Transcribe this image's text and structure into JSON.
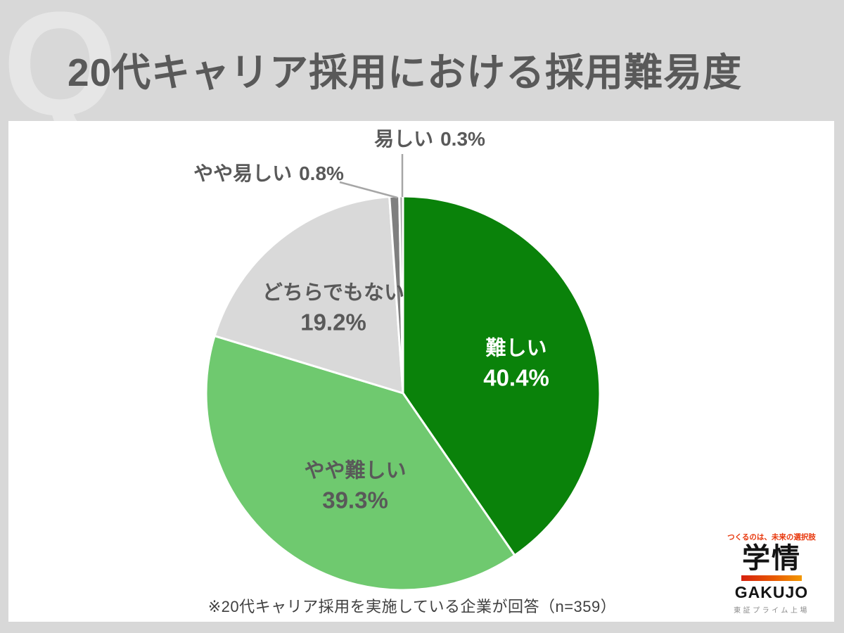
{
  "header": {
    "watermark": "Q",
    "title": "20代キャリア採用における採用難易度"
  },
  "chart_data": {
    "type": "pie",
    "title": "20代キャリア採用における採用難易度",
    "unit": "%",
    "start_angle_deg": 0,
    "direction": "clockwise",
    "legend_position": "in-slice and callout labels",
    "slices": [
      {
        "label": "難しい",
        "value": 40.4,
        "pct_text": "40.4%",
        "color": "#0a820a",
        "text_color": "#ffffff"
      },
      {
        "label": "やや難しい",
        "value": 39.3,
        "pct_text": "39.3%",
        "color": "#6fc96f",
        "text_color": "#595959"
      },
      {
        "label": "どちらでもない",
        "value": 19.2,
        "pct_text": "19.2%",
        "color": "#d9d9d9",
        "text_color": "#595959"
      },
      {
        "label": "やや易しい",
        "value": 0.8,
        "pct_text": "0.8%",
        "color": "#7f7f7f",
        "text_color": "#595959"
      },
      {
        "label": "易しい",
        "value": 0.3,
        "pct_text": "0.3%",
        "color": "#a6a6a6",
        "text_color": "#595959"
      }
    ]
  },
  "footnote": "※20代キャリア採用を実施している企業が回答（n=359）",
  "logo": {
    "tagline": "つくるのは、未来の選択肢",
    "name_jp": "学情",
    "name_en": "GAKUJO",
    "listing": "東証プライム上場"
  },
  "colors": {
    "page_background": "#d8d8d8",
    "panel_background": "#ffffff",
    "title_text": "#595959",
    "leader_line": "#a6a6a6",
    "logo_accent_red": "#e8380d",
    "logo_gradient_start": "#d6210f",
    "logo_gradient_end": "#f39800"
  }
}
